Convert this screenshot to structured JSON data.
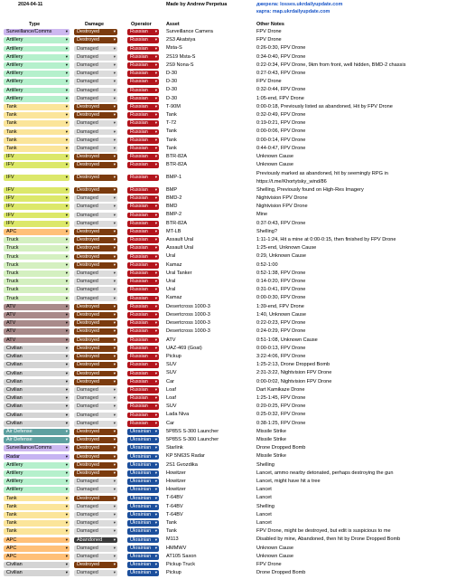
{
  "header": {
    "date": "2024-04-11",
    "author": "Made by Andrew Perpetua",
    "source1": "джерела: losses.ukrdailyupdate.com",
    "source2": "карта: map.ukrdailyupdate.com"
  },
  "columns": {
    "type": "Type",
    "damage": "Damage",
    "operator": "Operator",
    "asset": "Asset",
    "notes": "Other Notes"
  },
  "type_colors": {
    "Surveillance/Comms": "#cdb8f0",
    "Artillery": "#b5f0cc",
    "Tank": "#fbe59a",
    "IFV": "#dce86a",
    "APC": "#ffc078",
    "Truck": "#d4f0c0",
    "ATV": "#a98a8a",
    "Civilian": "#d4d4d4",
    "Air Defense": "#5ea0a0",
    "Radar": "#c6b4f2"
  },
  "rows": [
    {
      "type": "Surveillance/Comms",
      "damage": "Destroyed",
      "operator": "Russian",
      "asset": "Surveillance Camera",
      "notes": "FPV Drone"
    },
    {
      "type": "Artillery",
      "damage": "Destroyed",
      "operator": "Russian",
      "asset": "2S3 Akatsiya",
      "notes": "FPV Drone"
    },
    {
      "type": "Artillery",
      "damage": "Damaged",
      "operator": "Russian",
      "asset": "Msta-S",
      "notes": "0:26-0:30, FPV Drone"
    },
    {
      "type": "Artillery",
      "damage": "Damaged",
      "operator": "Russian",
      "asset": "2S19 Msta-S",
      "notes": "0:34-0:40, FPV Drone"
    },
    {
      "type": "Artillery",
      "damage": "Damaged",
      "operator": "Russian",
      "asset": "2S9 Nona-S",
      "notes": "0:22-0:34, FPV Drone, 9km from front, well hidden, BMD-2 chassis"
    },
    {
      "type": "Artillery",
      "damage": "Damaged",
      "operator": "Russian",
      "asset": "D-30",
      "notes": "0:27-0:43, FPV Drone"
    },
    {
      "type": "Artillery",
      "damage": "Damaged",
      "operator": "Russian",
      "asset": "D-30",
      "notes": "FPV Drone"
    },
    {
      "type": "Artillery",
      "damage": "Damaged",
      "operator": "Russian",
      "asset": "D-30",
      "notes": "0:32-0:44, FPV Drone"
    },
    {
      "type": "Artillery",
      "damage": "Damaged",
      "operator": "Russian",
      "asset": "D-30",
      "notes": "1:05-end, FPV Drone"
    },
    {
      "type": "Tank",
      "damage": "Destroyed",
      "operator": "Russian",
      "asset": "T-90M",
      "notes": "0:00-0:18, Previously listed as abandoned, Hit by FPV Drone"
    },
    {
      "type": "Tank",
      "damage": "Destroyed",
      "operator": "Russian",
      "asset": "Tank",
      "notes": "0:32-0:49, FPV Drone"
    },
    {
      "type": "Tank",
      "damage": "Damaged",
      "operator": "Russian",
      "asset": "T-72",
      "notes": "0:19-0:21, FPV Drone"
    },
    {
      "type": "Tank",
      "damage": "Damaged",
      "operator": "Russian",
      "asset": "Tank",
      "notes": "0:00-0:06, FPV Drone"
    },
    {
      "type": "Tank",
      "damage": "Damaged",
      "operator": "Russian",
      "asset": "Tank",
      "notes": "0:00-0:14, FPV Drone"
    },
    {
      "type": "Tank",
      "damage": "Damaged",
      "operator": "Russian",
      "asset": "Tank",
      "notes": "0:44-0:47, FPV Drone"
    },
    {
      "type": "IFV",
      "damage": "Destroyed",
      "operator": "Russian",
      "asset": "BTR-82A",
      "notes": "Unknown Cause"
    },
    {
      "type": "IFV",
      "damage": "Destroyed",
      "operator": "Russian",
      "asset": "BTR-82A",
      "notes": "Unknown Cause"
    },
    {
      "type": "IFV",
      "damage": "Destroyed",
      "operator": "Russian",
      "asset": "BMP-1",
      "notes": "Previously marked as abandoned, hit by seemingly RPG in https://t.me/Khortytsky_wind/86",
      "tall": true
    },
    {
      "type": "IFV",
      "damage": "Destroyed",
      "operator": "Russian",
      "asset": "BMP",
      "notes": "Shelling, Previously found on High-Res Imagery"
    },
    {
      "type": "IFV",
      "damage": "Damaged",
      "operator": "Russian",
      "asset": "BMD-2",
      "notes": "Nightvision FPV Drone"
    },
    {
      "type": "IFV",
      "damage": "Damaged",
      "operator": "Russian",
      "asset": "BMD",
      "notes": "Nightvision FPV Drone"
    },
    {
      "type": "IFV",
      "damage": "Damaged",
      "operator": "Russian",
      "asset": "BMP-2",
      "notes": "Mine"
    },
    {
      "type": "IFV",
      "damage": "Damaged",
      "operator": "Russian",
      "asset": "BTR-82A",
      "notes": "0:37-0:43, FPV Drone"
    },
    {
      "type": "APC",
      "damage": "Destroyed",
      "operator": "Russian",
      "asset": "MT-LB",
      "notes": "Shelling?"
    },
    {
      "type": "Truck",
      "damage": "Destroyed",
      "operator": "Russian",
      "asset": "Assault Ural",
      "notes": "1:11-1:24, Hit a mine at 0:00-0:15, then finished by FPV Drone"
    },
    {
      "type": "Truck",
      "damage": "Destroyed",
      "operator": "Russian",
      "asset": "Assault Ural",
      "notes": "1:25-end, Unknown Cause"
    },
    {
      "type": "Truck",
      "damage": "Destroyed",
      "operator": "Russian",
      "asset": "Ural",
      "notes": "0:29, Unknown Cause"
    },
    {
      "type": "Truck",
      "damage": "Destroyed",
      "operator": "Russian",
      "asset": "Kamaz",
      "notes": "0:52-1:00"
    },
    {
      "type": "Truck",
      "damage": "Damaged",
      "operator": "Russian",
      "asset": "Ural Tanker",
      "notes": "0:52-1:38, FPV Drone"
    },
    {
      "type": "Truck",
      "damage": "Damaged",
      "operator": "Russian",
      "asset": "Ural",
      "notes": "0:14-0:20, FPV Drone"
    },
    {
      "type": "Truck",
      "damage": "Damaged",
      "operator": "Russian",
      "asset": "Ural",
      "notes": "0:31-0:41, FPV Drone"
    },
    {
      "type": "Truck",
      "damage": "Damaged",
      "operator": "Russian",
      "asset": "Kamaz",
      "notes": "0:00-0:30, FPV Drone"
    },
    {
      "type": "ATV",
      "damage": "Destroyed",
      "operator": "Russian",
      "asset": "Desertcross 1000-3",
      "notes": "1:39-end, FPV Drone"
    },
    {
      "type": "ATV",
      "damage": "Destroyed",
      "operator": "Russian",
      "asset": "Desertcross 1000-3",
      "notes": "1:40, Unknown Cause"
    },
    {
      "type": "ATV",
      "damage": "Destroyed",
      "operator": "Russian",
      "asset": "Desertcross 1000-3",
      "notes": "0:22-0:23, FPV Drone"
    },
    {
      "type": "ATV",
      "damage": "Destroyed",
      "operator": "Russian",
      "asset": "Desertcross 1000-3",
      "notes": "0:24-0:29, FPV Drone"
    },
    {
      "type": "ATV",
      "damage": "Destroyed",
      "operator": "Russian",
      "asset": "ATV",
      "notes": "0:51-1:08, Unknown Cause"
    },
    {
      "type": "Civilian",
      "damage": "Destroyed",
      "operator": "Russian",
      "asset": "UAZ-469 (Goat)",
      "notes": "0:00-0:13, FPV Drone"
    },
    {
      "type": "Civilian",
      "damage": "Destroyed",
      "operator": "Russian",
      "asset": "Pickup",
      "notes": "3:22-4:06, FPV Drone"
    },
    {
      "type": "Civilian",
      "damage": "Destroyed",
      "operator": "Russian",
      "asset": "SUV",
      "notes": "1:25-2:13, Drone Dropped Bomb"
    },
    {
      "type": "Civilian",
      "damage": "Destroyed",
      "operator": "Russian",
      "asset": "SUV",
      "notes": "2:31-3:22, Nightvision FPV Drone"
    },
    {
      "type": "Civilian",
      "damage": "Destroyed",
      "operator": "Russian",
      "asset": "Car",
      "notes": "0:00-0:02, Nightvision FPV Drone"
    },
    {
      "type": "Civilian",
      "damage": "Damaged",
      "operator": "Russian",
      "asset": "Loaf",
      "notes": "Dart Kamikaze Drone"
    },
    {
      "type": "Civilian",
      "damage": "Damaged",
      "operator": "Russian",
      "asset": "Loaf",
      "notes": "1:25-1:45, FPV Drone"
    },
    {
      "type": "Civilian",
      "damage": "Damaged",
      "operator": "Russian",
      "asset": "SUV",
      "notes": "0:20-0:25, FPV Drone"
    },
    {
      "type": "Civilian",
      "damage": "Damaged",
      "operator": "Russian",
      "asset": "Lada Niva",
      "notes": "0:25-0:32, FPV Drone"
    },
    {
      "type": "Civilian",
      "damage": "Damaged",
      "operator": "Russian",
      "asset": "Car",
      "notes": "0:38-1:25, FPV Drone"
    },
    {
      "type": "Air Defense",
      "damage": "Destroyed",
      "operator": "Ukrainian",
      "asset": "5P85S S-300 Launcher",
      "notes": "Missile Strike"
    },
    {
      "type": "Air Defense",
      "damage": "Destroyed",
      "operator": "Ukrainian",
      "asset": "5P85S S-300 Launcher",
      "notes": "Missile Strike"
    },
    {
      "type": "Surveillance/Comms",
      "damage": "Destroyed",
      "operator": "Ukrainian",
      "asset": "Starlink",
      "notes": "Drone Dropped Bomb"
    },
    {
      "type": "Radar",
      "damage": "Destroyed",
      "operator": "Ukrainian",
      "asset": "KP 5N63S Radar",
      "notes": "Missile Strike"
    },
    {
      "type": "Artillery",
      "damage": "Destroyed",
      "operator": "Ukrainian",
      "asset": "2S1 Gvozdika",
      "notes": "Shelling"
    },
    {
      "type": "Artillery",
      "damage": "Destroyed",
      "operator": "Ukrainian",
      "asset": "Howitzer",
      "notes": "Lancet, ammo nearby detonated, perhaps destroying the gun"
    },
    {
      "type": "Artillery",
      "damage": "Damaged",
      "operator": "Ukrainian",
      "asset": "Howitzer",
      "notes": "Lancet, might have hit a tree"
    },
    {
      "type": "Artillery",
      "damage": "Damaged",
      "operator": "Ukrainian",
      "asset": "Howitzer",
      "notes": "Lancet"
    },
    {
      "type": "Tank",
      "damage": "Destroyed",
      "operator": "Ukrainian",
      "asset": "T-64BV",
      "notes": "Lancet"
    },
    {
      "type": "Tank",
      "damage": "Damaged",
      "operator": "Ukrainian",
      "asset": "T-64BV",
      "notes": "Shelling"
    },
    {
      "type": "Tank",
      "damage": "Damaged",
      "operator": "Ukrainian",
      "asset": "T-64BV",
      "notes": "Lancet"
    },
    {
      "type": "Tank",
      "damage": "Damaged",
      "operator": "Ukrainian",
      "asset": "Tank",
      "notes": "Lancet"
    },
    {
      "type": "Tank",
      "damage": "Damaged",
      "operator": "Ukrainian",
      "asset": "Tank",
      "notes": "FPV Drone, might be destroyed, but edit is suspicious to me"
    },
    {
      "type": "APC",
      "damage": "Abandoned",
      "operator": "Ukrainian",
      "asset": "M113",
      "notes": "Disabled by mine, Abandoned, then hit by Drone Dropped Bomb"
    },
    {
      "type": "APC",
      "damage": "Damaged",
      "operator": "Ukrainian",
      "asset": "HMMWV",
      "notes": "Unknown Cause"
    },
    {
      "type": "APC",
      "damage": "Damaged",
      "operator": "Ukrainian",
      "asset": "AT105 Saxon",
      "notes": "Unknown Cause"
    },
    {
      "type": "Civilian",
      "damage": "Destroyed",
      "operator": "Ukrainian",
      "asset": "Pickup Truck",
      "notes": "FPV Drone"
    },
    {
      "type": "Civilian",
      "damage": "Damaged",
      "operator": "Ukrainian",
      "asset": "Pickup",
      "notes": "Drone Dropped Bomb"
    }
  ]
}
